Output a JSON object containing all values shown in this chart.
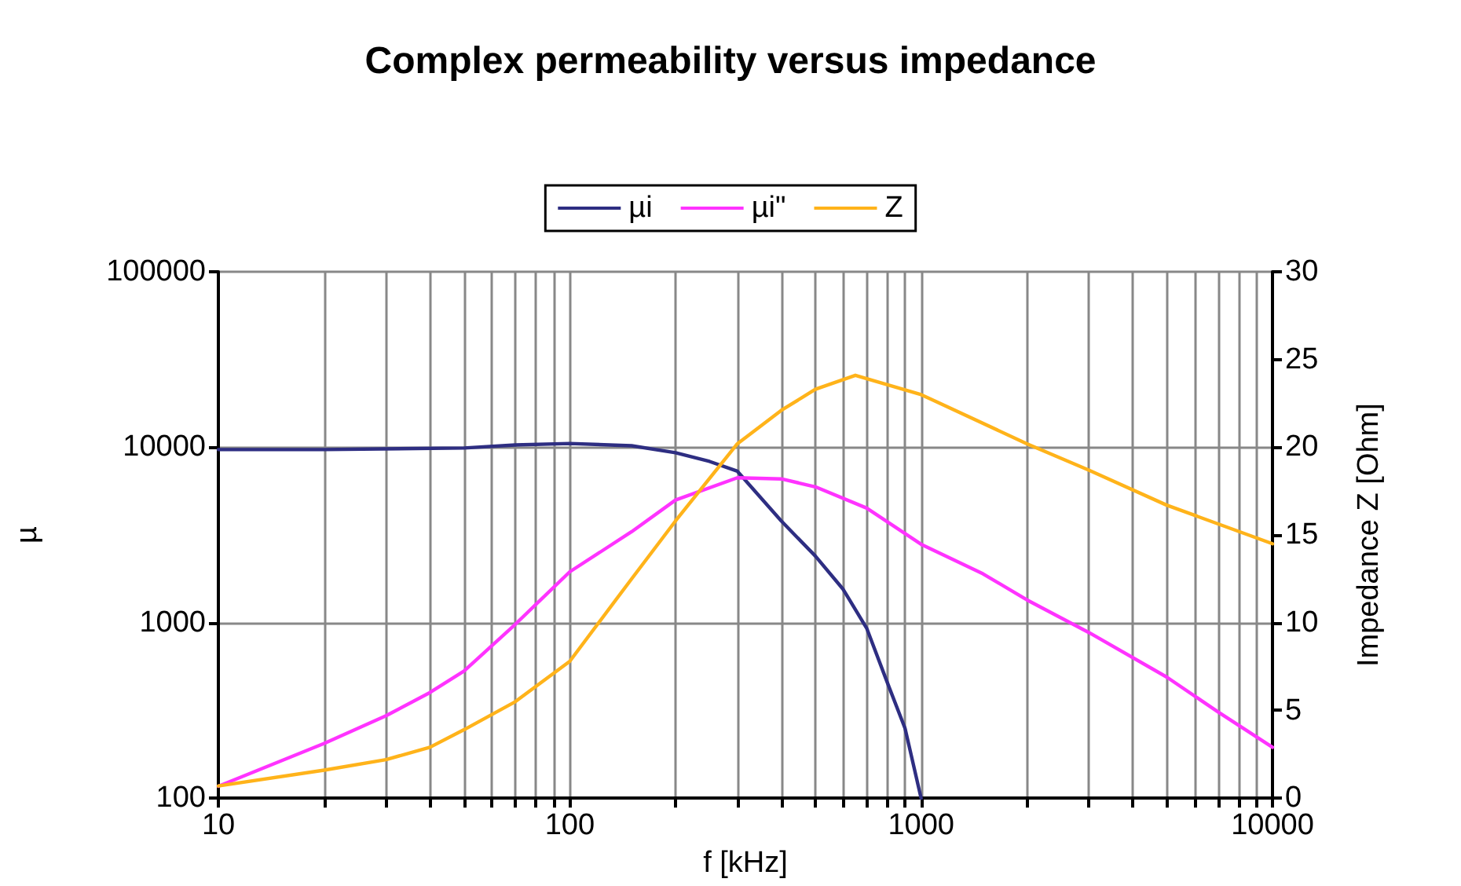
{
  "chart_data": {
    "type": "line",
    "title": "Complex permeability versus impedance",
    "xlabel": "f [kHz]",
    "ylabel": "µ",
    "y2label": "Impedance Z [Ohm]",
    "series": [
      {
        "name": "µi",
        "color": "#2e2e82",
        "x": [
          10,
          20,
          50,
          70,
          100,
          150,
          200,
          250,
          300,
          400,
          500,
          600,
          700,
          800,
          900,
          1000
        ],
        "values": [
          9700,
          9700,
          9900,
          10300,
          10500,
          10200,
          9300,
          8300,
          7300,
          3800,
          2400,
          1550,
          930,
          460,
          250,
          100
        ]
      },
      {
        "name": "µi\"",
        "color": "#ff33ff",
        "x": [
          10,
          20,
          30,
          40,
          50,
          70,
          100,
          150,
          200,
          300,
          400,
          500,
          700,
          1000,
          1500,
          2000,
          3000,
          5000,
          7000,
          10000
        ],
        "values": [
          117,
          205,
          295,
          400,
          530,
          980,
          1950,
          3300,
          5000,
          6700,
          6600,
          5950,
          4500,
          2800,
          1900,
          1350,
          880,
          490,
          310,
          195
        ]
      },
      {
        "name": "Z",
        "color": "#ffb31a",
        "axis": "y2",
        "x": [
          10,
          20,
          30,
          40,
          50,
          70,
          100,
          150,
          200,
          300,
          400,
          500,
          650,
          1000,
          2000,
          3000,
          5000,
          10000
        ],
        "values": [
          0.7,
          1.6,
          2.2,
          2.9,
          3.9,
          5.5,
          7.8,
          12.5,
          15.8,
          20.2,
          22.1,
          23.3,
          24.1,
          23.0,
          20.2,
          18.7,
          16.7,
          14.5
        ]
      }
    ],
    "log": "xy",
    "xlim": [
      10,
      10000
    ],
    "xticks": [
      10,
      {
        "value": 20,
        "label": null
      },
      {
        "value": 30,
        "label": null
      },
      {
        "value": 40,
        "label": null
      },
      {
        "value": 50,
        "label": null
      },
      {
        "value": 60,
        "label": null
      },
      {
        "value": 70,
        "label": null
      },
      {
        "value": 80,
        "label": null
      },
      {
        "value": 90,
        "label": null
      },
      100,
      {
        "value": 200,
        "label": null
      },
      {
        "value": 300,
        "label": null
      },
      {
        "value": 400,
        "label": null
      },
      {
        "value": 500,
        "label": null
      },
      {
        "value": 600,
        "label": null
      },
      {
        "value": 700,
        "label": null
      },
      {
        "value": 800,
        "label": null
      },
      {
        "value": 900,
        "label": null
      },
      1000,
      {
        "value": 2000,
        "label": null
      },
      {
        "value": 3000,
        "label": null
      },
      {
        "value": 4000,
        "label": null
      },
      {
        "value": 5000,
        "label": null
      },
      {
        "value": 6000,
        "label": null
      },
      {
        "value": 7000,
        "label": null
      },
      {
        "value": 8000,
        "label": null
      },
      {
        "value": 9000,
        "label": null
      },
      10000
    ],
    "ylim": [
      100,
      100000
    ],
    "yticks": [
      100,
      1000,
      10000,
      100000
    ],
    "y2lim": [
      0,
      30
    ],
    "y2ticks": [
      0,
      5,
      10,
      15,
      20,
      25,
      30
    ],
    "grid": true,
    "legend": "top",
    "marker": "none",
    "line_style": "solid"
  }
}
